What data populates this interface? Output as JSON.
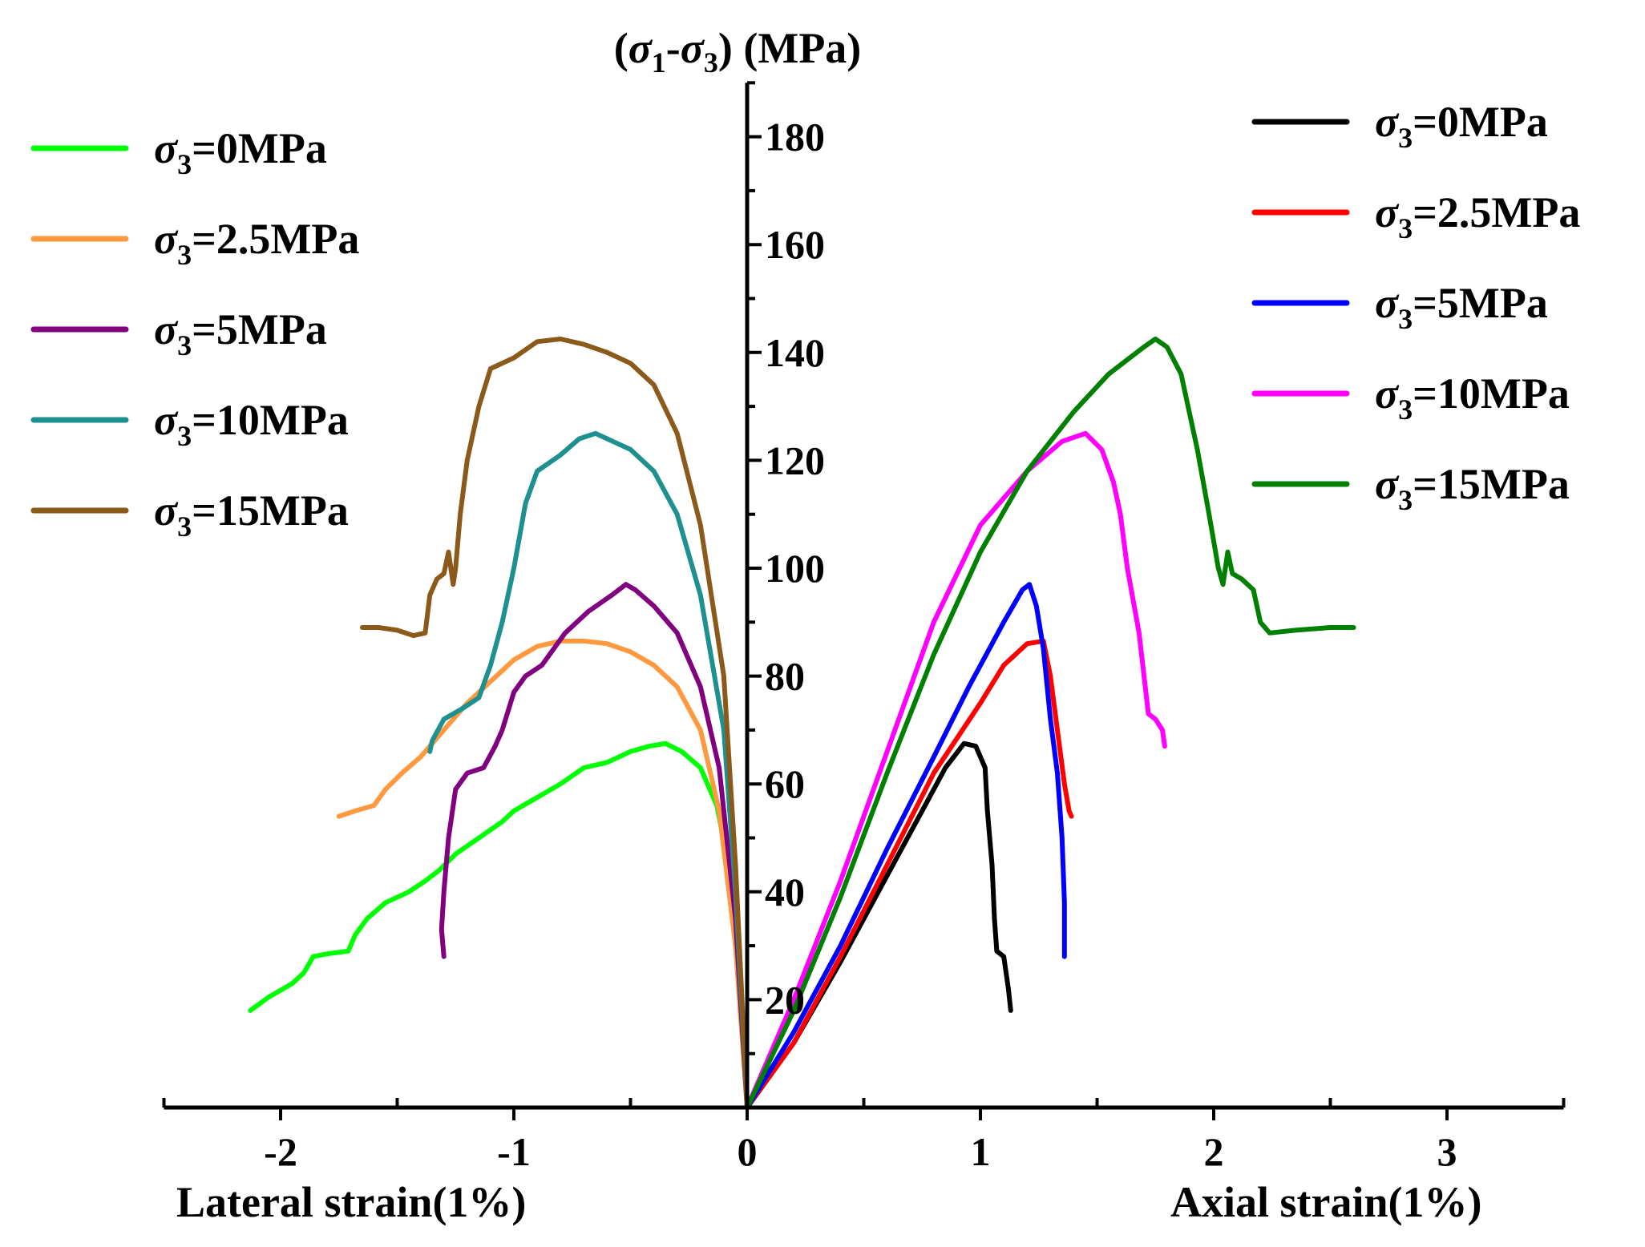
{
  "chart_data": {
    "type": "line",
    "title": "",
    "ylabel": {
      "pre": "(",
      "sym1": "σ",
      "sub1": "1",
      "mid": "-",
      "sym2": "σ",
      "sub2": "3",
      "post": ") (MPa)"
    },
    "xlabel_left": "Lateral strain(1%)",
    "xlabel_right": "Axial strain(1%)",
    "xlim": [
      -2.5,
      3.5
    ],
    "ylim": [
      0,
      190
    ],
    "xticks": [
      -2,
      -1,
      0,
      1,
      2,
      3
    ],
    "xtick_labels": [
      "-2",
      "-1",
      "0",
      "1",
      "2",
      "3"
    ],
    "yticks": [
      20,
      40,
      60,
      80,
      100,
      120,
      140,
      160,
      180
    ],
    "ytick_labels": [
      "20",
      "40",
      "60",
      "80",
      "100",
      "120",
      "140",
      "160",
      "180"
    ],
    "grid": false,
    "legend_left": {
      "placement": "top-left",
      "entries": [
        {
          "sym": "σ",
          "sub": "3",
          "text": "=0MPa",
          "color": "#00ff00"
        },
        {
          "sym": "σ",
          "sub": "3",
          "text": "=2.5MPa",
          "color": "#ff9940"
        },
        {
          "sym": "σ",
          "sub": "3",
          "text": "=5MPa",
          "color": "#800080"
        },
        {
          "sym": "σ",
          "sub": "3",
          "text": "=10MPa",
          "color": "#1f9090"
        },
        {
          "sym": "σ",
          "sub": "3",
          "text": "=15MPa",
          "color": "#8b5a1a"
        }
      ]
    },
    "legend_right": {
      "placement": "top-right",
      "entries": [
        {
          "sym": "σ",
          "sub": "3",
          "text": "=0MPa",
          "color": "#000000"
        },
        {
          "sym": "σ",
          "sub": "3",
          "text": "=2.5MPa",
          "color": "#ff0000"
        },
        {
          "sym": "σ",
          "sub": "3",
          "text": "=5MPa",
          "color": "#0000ff"
        },
        {
          "sym": "σ",
          "sub": "3",
          "text": "=10MPa",
          "color": "#ff00ff"
        },
        {
          "sym": "σ",
          "sub": "3",
          "text": "=15MPa",
          "color": "#008000"
        }
      ]
    },
    "series_lateral": [
      {
        "color": "#00ff00",
        "points": [
          [
            0,
            0
          ],
          [
            -0.03,
            20
          ],
          [
            -0.08,
            45
          ],
          [
            -0.13,
            56
          ],
          [
            -0.2,
            63
          ],
          [
            -0.28,
            66
          ],
          [
            -0.35,
            67.5
          ],
          [
            -0.42,
            67
          ],
          [
            -0.5,
            66
          ],
          [
            -0.6,
            64
          ],
          [
            -0.7,
            63
          ],
          [
            -0.8,
            60
          ],
          [
            -0.92,
            57
          ],
          [
            -1.0,
            55
          ],
          [
            -1.05,
            53
          ],
          [
            -1.15,
            50
          ],
          [
            -1.25,
            47
          ],
          [
            -1.32,
            44
          ],
          [
            -1.38,
            42
          ],
          [
            -1.45,
            40
          ],
          [
            -1.55,
            38
          ],
          [
            -1.63,
            35
          ],
          [
            -1.68,
            32
          ],
          [
            -1.71,
            29
          ],
          [
            -1.8,
            28.5
          ],
          [
            -1.86,
            28
          ],
          [
            -1.9,
            25
          ],
          [
            -1.95,
            23
          ],
          [
            -2.05,
            20.5
          ],
          [
            -2.13,
            18
          ]
        ]
      },
      {
        "color": "#ff9940",
        "points": [
          [
            0,
            0
          ],
          [
            -0.05,
            30
          ],
          [
            -0.12,
            55
          ],
          [
            -0.2,
            70
          ],
          [
            -0.3,
            78
          ],
          [
            -0.4,
            82
          ],
          [
            -0.5,
            84.5
          ],
          [
            -0.6,
            86
          ],
          [
            -0.7,
            86.5
          ],
          [
            -0.8,
            86.5
          ],
          [
            -0.9,
            85.5
          ],
          [
            -1.0,
            83
          ],
          [
            -1.1,
            79
          ],
          [
            -1.2,
            75
          ],
          [
            -1.3,
            70
          ],
          [
            -1.4,
            65
          ],
          [
            -1.48,
            62
          ],
          [
            -1.55,
            59
          ],
          [
            -1.6,
            56
          ],
          [
            -1.68,
            55
          ],
          [
            -1.75,
            54
          ]
        ]
      },
      {
        "color": "#800080",
        "points": [
          [
            0,
            0
          ],
          [
            -0.05,
            35
          ],
          [
            -0.12,
            63
          ],
          [
            -0.2,
            78
          ],
          [
            -0.3,
            88
          ],
          [
            -0.4,
            93
          ],
          [
            -0.48,
            96
          ],
          [
            -0.52,
            97
          ],
          [
            -0.58,
            95
          ],
          [
            -0.68,
            92
          ],
          [
            -0.78,
            88
          ],
          [
            -0.88,
            82
          ],
          [
            -0.95,
            80
          ],
          [
            -1.0,
            77
          ],
          [
            -1.05,
            70
          ],
          [
            -1.08,
            67
          ],
          [
            -1.13,
            63
          ],
          [
            -1.2,
            62
          ],
          [
            -1.25,
            59
          ],
          [
            -1.28,
            50
          ],
          [
            -1.3,
            40
          ],
          [
            -1.31,
            33
          ],
          [
            -1.3,
            28
          ]
        ]
      },
      {
        "color": "#1f9090",
        "points": [
          [
            0,
            0
          ],
          [
            -0.05,
            40
          ],
          [
            -0.1,
            70
          ],
          [
            -0.2,
            95
          ],
          [
            -0.3,
            110
          ],
          [
            -0.4,
            118
          ],
          [
            -0.5,
            122
          ],
          [
            -0.6,
            124
          ],
          [
            -0.65,
            125
          ],
          [
            -0.72,
            124
          ],
          [
            -0.8,
            121
          ],
          [
            -0.9,
            118
          ],
          [
            -0.95,
            112
          ],
          [
            -1.0,
            100
          ],
          [
            -1.05,
            90
          ],
          [
            -1.1,
            82
          ],
          [
            -1.15,
            76
          ],
          [
            -1.22,
            74
          ],
          [
            -1.3,
            72
          ],
          [
            -1.35,
            68
          ],
          [
            -1.36,
            66
          ]
        ]
      },
      {
        "color": "#8b5a1a",
        "points": [
          [
            0,
            0
          ],
          [
            -0.05,
            45
          ],
          [
            -0.1,
            80
          ],
          [
            -0.2,
            108
          ],
          [
            -0.3,
            125
          ],
          [
            -0.4,
            134
          ],
          [
            -0.5,
            138
          ],
          [
            -0.6,
            140
          ],
          [
            -0.7,
            141.5
          ],
          [
            -0.8,
            142.5
          ],
          [
            -0.9,
            142
          ],
          [
            -1.0,
            139
          ],
          [
            -1.1,
            137
          ],
          [
            -1.15,
            130
          ],
          [
            -1.2,
            120
          ],
          [
            -1.23,
            110
          ],
          [
            -1.25,
            100
          ],
          [
            -1.26,
            97
          ],
          [
            -1.28,
            103
          ],
          [
            -1.3,
            99
          ],
          [
            -1.33,
            98
          ],
          [
            -1.36,
            95
          ],
          [
            -1.38,
            88
          ],
          [
            -1.43,
            87.5
          ],
          [
            -1.5,
            88.5
          ],
          [
            -1.58,
            89
          ],
          [
            -1.65,
            89
          ]
        ]
      }
    ],
    "series_axial": [
      {
        "color": "#000000",
        "points": [
          [
            0,
            0
          ],
          [
            0.2,
            12
          ],
          [
            0.4,
            27
          ],
          [
            0.6,
            43
          ],
          [
            0.75,
            55
          ],
          [
            0.85,
            63
          ],
          [
            0.93,
            67.5
          ],
          [
            0.98,
            67
          ],
          [
            1.02,
            63
          ],
          [
            1.03,
            55
          ],
          [
            1.05,
            45
          ],
          [
            1.06,
            35
          ],
          [
            1.07,
            29
          ],
          [
            1.1,
            28
          ],
          [
            1.12,
            22
          ],
          [
            1.13,
            18
          ]
        ]
      },
      {
        "color": "#ff0000",
        "points": [
          [
            0,
            0
          ],
          [
            0.2,
            12
          ],
          [
            0.4,
            28
          ],
          [
            0.6,
            45
          ],
          [
            0.8,
            62
          ],
          [
            1.0,
            75
          ],
          [
            1.1,
            82
          ],
          [
            1.2,
            86
          ],
          [
            1.27,
            86.5
          ],
          [
            1.3,
            80
          ],
          [
            1.33,
            70
          ],
          [
            1.36,
            60
          ],
          [
            1.38,
            55
          ],
          [
            1.39,
            54
          ]
        ]
      },
      {
        "color": "#0000ff",
        "points": [
          [
            0,
            0
          ],
          [
            0.2,
            14
          ],
          [
            0.4,
            30
          ],
          [
            0.6,
            48
          ],
          [
            0.8,
            65
          ],
          [
            0.95,
            78
          ],
          [
            1.1,
            90
          ],
          [
            1.18,
            96
          ],
          [
            1.21,
            97
          ],
          [
            1.24,
            93
          ],
          [
            1.27,
            85
          ],
          [
            1.3,
            72
          ],
          [
            1.33,
            62
          ],
          [
            1.35,
            50
          ],
          [
            1.36,
            38
          ],
          [
            1.36,
            28
          ]
        ]
      },
      {
        "color": "#ff00ff",
        "points": [
          [
            0,
            0
          ],
          [
            0.2,
            20
          ],
          [
            0.4,
            42
          ],
          [
            0.6,
            66
          ],
          [
            0.8,
            90
          ],
          [
            1.0,
            108
          ],
          [
            1.2,
            118
          ],
          [
            1.35,
            123.5
          ],
          [
            1.45,
            125
          ],
          [
            1.52,
            122
          ],
          [
            1.57,
            116
          ],
          [
            1.6,
            110
          ],
          [
            1.63,
            100
          ],
          [
            1.68,
            88
          ],
          [
            1.72,
            73
          ],
          [
            1.75,
            72
          ],
          [
            1.78,
            70
          ],
          [
            1.79,
            67
          ]
        ]
      },
      {
        "color": "#008000",
        "points": [
          [
            0,
            0
          ],
          [
            0.2,
            18
          ],
          [
            0.4,
            39
          ],
          [
            0.6,
            62
          ],
          [
            0.8,
            84
          ],
          [
            1.0,
            103
          ],
          [
            1.2,
            118
          ],
          [
            1.4,
            129
          ],
          [
            1.55,
            136
          ],
          [
            1.7,
            141
          ],
          [
            1.75,
            142.5
          ],
          [
            1.8,
            141
          ],
          [
            1.86,
            136
          ],
          [
            1.93,
            122
          ],
          [
            1.98,
            110
          ],
          [
            2.02,
            100
          ],
          [
            2.04,
            97
          ],
          [
            2.06,
            103
          ],
          [
            2.08,
            99
          ],
          [
            2.12,
            98
          ],
          [
            2.17,
            96
          ],
          [
            2.2,
            90
          ],
          [
            2.24,
            88
          ],
          [
            2.35,
            88.5
          ],
          [
            2.5,
            89
          ],
          [
            2.6,
            89
          ]
        ]
      }
    ]
  }
}
